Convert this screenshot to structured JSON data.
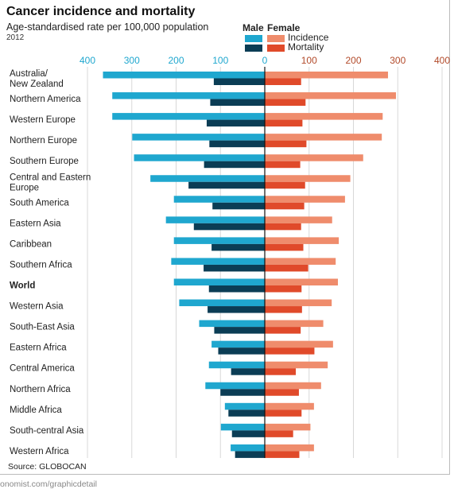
{
  "header": {
    "title": "Cancer incidence and mortality",
    "subtitle": "Age-standardised rate per 100,000 population",
    "year": "2012"
  },
  "legend": {
    "male_label": "Male",
    "female_label": "Female",
    "incidence_label": "Incidence",
    "mortality_label": "Mortality"
  },
  "footer": {
    "source": "Source: GLOBOCAN",
    "url": "onomist.com/graphicdetail"
  },
  "colors": {
    "male_incidence": "#1fa7cf",
    "male_mortality": "#0b3d55",
    "female_incidence": "#ef8c6c",
    "female_mortality": "#e04a2a",
    "male_axis": "#1fa7cf",
    "female_axis": "#b24a2a",
    "grid": "#d8d8d8"
  },
  "chart_data": {
    "type": "bar",
    "orientation": "horizontal-butterfly",
    "ticks_left": [
      "400",
      "300",
      "200",
      "100",
      "0"
    ],
    "ticks_right": [
      "100",
      "200",
      "300",
      "400"
    ],
    "xlim": [
      -400,
      400
    ],
    "grid": true,
    "categories": [
      "Australia/\nNew Zealand",
      "Northern America",
      "Western Europe",
      "Northern Europe",
      "Southern Europe",
      "Central and Eastern\nEurope",
      "South America",
      "Eastern Asia",
      "Caribbean",
      "Southern Africa",
      "World",
      "Western Asia",
      "South-East Asia",
      "Eastern Africa",
      "Central America",
      "Northern Africa",
      "Middle Africa",
      "South-central Asia",
      "Western Africa"
    ],
    "highlight": "World",
    "series": [
      {
        "name": "Male Incidence",
        "values": [
          365,
          344,
          344,
          299,
          295,
          258,
          205,
          223,
          205,
          211,
          205,
          193,
          148,
          120,
          126,
          134,
          90,
          99,
          77
        ]
      },
      {
        "name": "Male Mortality",
        "values": [
          115,
          123,
          131,
          125,
          137,
          172,
          118,
          160,
          120,
          138,
          126,
          129,
          114,
          105,
          76,
          100,
          82,
          74,
          67
        ]
      },
      {
        "name": "Female Incidence",
        "values": [
          278,
          296,
          266,
          264,
          222,
          193,
          181,
          152,
          167,
          160,
          165,
          151,
          132,
          154,
          142,
          127,
          111,
          103,
          111
        ]
      },
      {
        "name": "Female Mortality",
        "values": [
          82,
          92,
          85,
          94,
          80,
          91,
          89,
          82,
          87,
          98,
          83,
          84,
          81,
          112,
          70,
          77,
          83,
          64,
          78
        ]
      }
    ]
  }
}
